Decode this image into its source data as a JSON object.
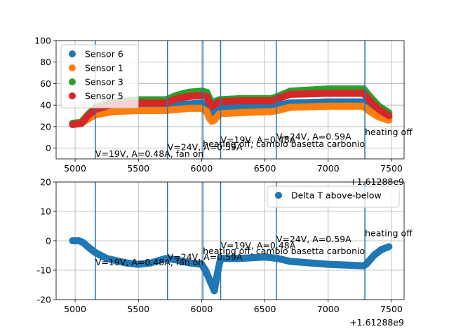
{
  "chart_data": [
    {
      "type": "scatter",
      "offset_label": "+1.61288e9",
      "xlim": [
        4850,
        7600
      ],
      "ylim": [
        -10,
        100
      ],
      "xticks": [
        5000,
        5500,
        6000,
        6500,
        7000,
        7500
      ],
      "yticks": [
        0,
        20,
        40,
        60,
        80,
        100
      ],
      "grid": true,
      "legend": {
        "placement": "top-left"
      },
      "series": [
        {
          "name": "Sensor 6",
          "color": "#1f77b4",
          "x": [
            4980,
            5050,
            5100,
            5160,
            5300,
            5500,
            5720,
            5800,
            5900,
            6000,
            6040,
            6060,
            6080,
            6100,
            6140,
            6300,
            6550,
            6600,
            6700,
            7000,
            7280,
            7330,
            7400,
            7480
          ],
          "y": [
            23,
            24,
            29,
            34,
            38,
            39,
            39,
            40,
            41,
            42,
            40,
            35,
            32,
            33,
            38,
            39,
            40,
            40,
            42,
            43,
            43,
            38,
            32,
            28
          ]
        },
        {
          "name": "Sensor 1",
          "color": "#ff7f0e",
          "x": [
            4980,
            5050,
            5100,
            5160,
            5300,
            5500,
            5720,
            5800,
            5900,
            6000,
            6040,
            6060,
            6080,
            6100,
            6140,
            6300,
            6550,
            6600,
            6700,
            7000,
            7280,
            7330,
            7400,
            7480
          ],
          "y": [
            22,
            23,
            27,
            31,
            34,
            35,
            35,
            36,
            37,
            37,
            34,
            28,
            25,
            26,
            32,
            33,
            34,
            35,
            38,
            39,
            39,
            34,
            29,
            26
          ]
        },
        {
          "name": "Sensor 3",
          "color": "#2ca02c",
          "x": [
            4980,
            5050,
            5100,
            5160,
            5300,
            5500,
            5720,
            5800,
            5900,
            6000,
            6040,
            6060,
            6080,
            6100,
            6140,
            6300,
            6550,
            6600,
            6700,
            7000,
            7280,
            7330,
            7400,
            7480
          ],
          "y": [
            23,
            24,
            31,
            38,
            43,
            45,
            45,
            49,
            52,
            53,
            52,
            47,
            43,
            43,
            45,
            46,
            46,
            48,
            53,
            55,
            55,
            48,
            39,
            33
          ]
        },
        {
          "name": "Sensor 5",
          "color": "#d62728",
          "x": [
            4980,
            5050,
            5100,
            5160,
            5300,
            5500,
            5720,
            5800,
            5900,
            6000,
            6040,
            6060,
            6080,
            6100,
            6140,
            6300,
            6550,
            6600,
            6700,
            7000,
            7280,
            7330,
            7400,
            7480
          ],
          "y": [
            22,
            23,
            30,
            36,
            41,
            42,
            42,
            46,
            48,
            49,
            48,
            43,
            39,
            40,
            43,
            44,
            44,
            46,
            50,
            51,
            51,
            44,
            36,
            30
          ]
        }
      ],
      "vlines": [
        5160,
        5730,
        6010,
        6150,
        6590,
        7290
      ],
      "annotations": [
        {
          "text": "V=19V, A=0.48A, fan on",
          "x": 5160,
          "y": -8
        },
        {
          "text": "V=24V, A=0.59A",
          "x": 5730,
          "y": -2
        },
        {
          "text": "heating off, cambio basetta carbonio",
          "x": 6010,
          "y": 1
        },
        {
          "text": "V=19V, A=0.48A",
          "x": 6150,
          "y": 5
        },
        {
          "text": "V=24V, A=0.59A",
          "x": 6590,
          "y": 8
        },
        {
          "text": "heating off",
          "x": 7290,
          "y": 12
        }
      ]
    },
    {
      "type": "scatter",
      "offset_label": "+1.61288e9",
      "xlim": [
        4850,
        7600
      ],
      "ylim": [
        -20,
        20
      ],
      "xticks": [
        5000,
        5500,
        6000,
        6500,
        7000,
        7500
      ],
      "yticks": [
        -20,
        -10,
        0,
        10,
        20
      ],
      "grid": true,
      "legend": {
        "placement": "top-right"
      },
      "series": [
        {
          "name": "Delta T above-below",
          "color": "#1f77b4",
          "x": [
            4980,
            5030,
            5060,
            5100,
            5160,
            5250,
            5400,
            5500,
            5600,
            5720,
            5800,
            5900,
            6000,
            6030,
            6060,
            6080,
            6100,
            6120,
            6150,
            6300,
            6500,
            6600,
            6700,
            7000,
            7280,
            7300,
            7360,
            7420,
            7480
          ],
          "y": [
            0,
            0,
            -0.5,
            -2,
            -4,
            -6,
            -7.5,
            -8,
            -7.5,
            -6,
            -6.5,
            -7.5,
            -8,
            -10,
            -13,
            -15,
            -17,
            -12,
            -6,
            -6,
            -5.5,
            -6,
            -7,
            -8,
            -8.5,
            -8,
            -5,
            -3,
            -2
          ]
        }
      ],
      "vlines": [
        5160,
        5730,
        6010,
        6150,
        6590,
        7290
      ],
      "annotations": [
        {
          "text": "V=19V, A=0.48A, fan on",
          "x": 5160,
          "y": -8.3
        },
        {
          "text": "V=24V, A=0.59A",
          "x": 5730,
          "y": -6.5
        },
        {
          "text": "heating off, cambio basetta carbonio",
          "x": 6010,
          "y": -4.5
        },
        {
          "text": "V=19V, A=0.48A",
          "x": 6150,
          "y": -2.6
        },
        {
          "text": "V=24V, A=0.59A",
          "x": 6590,
          "y": -0.5
        },
        {
          "text": "heating off",
          "x": 7290,
          "y": 1.5
        }
      ]
    }
  ]
}
